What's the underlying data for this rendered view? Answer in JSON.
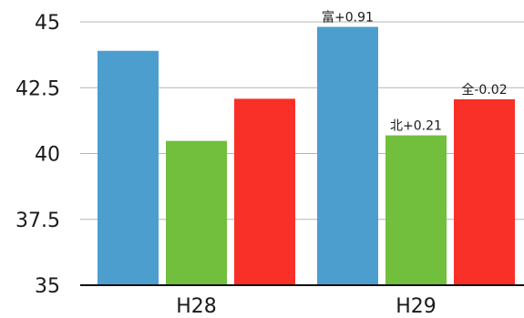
{
  "chart_data": {
    "type": "bar",
    "categories": [
      "H28",
      "H29"
    ],
    "series": [
      {
        "color": "#4c9ecf",
        "values": [
          43.9,
          44.81
        ]
      },
      {
        "color": "#71bf3c",
        "values": [
          40.48,
          40.69
        ]
      },
      {
        "color": "#f93027",
        "values": [
          42.08,
          42.06
        ]
      }
    ],
    "data_labels": [
      {
        "category": "H29",
        "series_index": 0,
        "text": "富+0.91"
      },
      {
        "category": "H29",
        "series_index": 1,
        "text": "北+0.21"
      },
      {
        "category": "H29",
        "series_index": 2,
        "text": "全-0.02"
      }
    ],
    "ylim": [
      35,
      45
    ],
    "yticks": [
      35,
      37.5,
      40,
      42.5,
      45
    ],
    "ytick_labels": [
      "35",
      "37.5",
      "40",
      "42.5",
      "45"
    ],
    "grid": true,
    "legend": "none",
    "title": "",
    "xlabel": "",
    "ylabel": ""
  }
}
